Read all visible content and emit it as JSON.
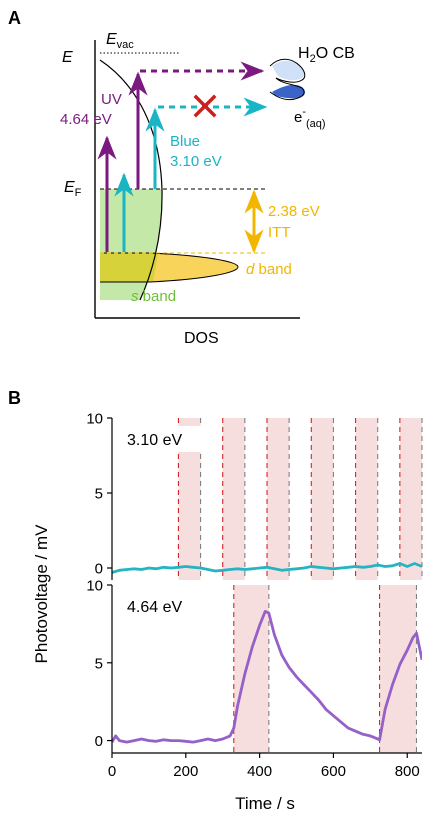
{
  "colors": {
    "purple": "#7a1a7e",
    "cyan": "#1ab5c4",
    "gold": "#f2b600",
    "red": "#cc1f1f",
    "s_band_fill": "#c4e8a8",
    "d_band_fill": "#f9d45a",
    "overlap_fill": "#d6d23a",
    "shade": "#f6dede",
    "uv_trace": "#9560c8",
    "blue_trace": "#25b4c2",
    "cb_blue": "#3a64c8"
  },
  "panel_a": {
    "panel_label": "A",
    "e_axis_label": "E",
    "e_vac": "E",
    "e_vac_sub": "vac",
    "e_f": "E",
    "e_f_sub": "F",
    "dos_label": "DOS",
    "uv_label": "UV",
    "uv_energy": "4.64 eV",
    "blue_label": "Blue",
    "blue_energy": "3.10 eV",
    "itt_energy": "2.38 eV",
    "itt_label": "ITT",
    "d_band_italic": "d",
    "d_band_word": " band",
    "s_band_italic": "s",
    "s_band_word": " band",
    "h2o_pre": "H",
    "h2o_sub": "2",
    "h2o_post": "O CB",
    "electron": "e",
    "electron_sup": "-",
    "electron_sub": "(aq)"
  },
  "panel_b": {
    "panel_label": "B",
    "ylabel": "Photovoltage / mV",
    "xlabel": "Time / s",
    "top_label": "3.10 eV",
    "bottom_label": "4.64 eV"
  },
  "chart_data": [
    {
      "type": "line",
      "title": "3.10 eV",
      "xlabel": "Time / s",
      "ylabel": "Photovoltage / mV",
      "xlim": [
        0,
        840
      ],
      "ylim": [
        -0.8,
        10
      ],
      "x_ticks": [
        0,
        200,
        400,
        600,
        800
      ],
      "y_ticks": [
        0,
        5,
        10
      ],
      "illumination_on": [
        180,
        300,
        420,
        540,
        660,
        780
      ],
      "illumination_off": [
        240,
        360,
        480,
        600,
        720,
        840
      ],
      "series": [
        {
          "x": [
            0,
            20,
            40,
            60,
            80,
            100,
            120,
            140,
            160,
            180,
            200,
            220,
            240,
            260,
            280,
            300,
            320,
            340,
            360,
            380,
            400,
            420,
            440,
            460,
            480,
            500,
            520,
            540,
            560,
            580,
            600,
            620,
            640,
            660,
            680,
            700,
            720,
            740,
            760,
            780,
            800,
            820,
            840
          ],
          "values": [
            -0.3,
            -0.15,
            -0.1,
            -0.05,
            -0.1,
            0.0,
            -0.05,
            0.05,
            0.0,
            0.05,
            0.1,
            0.05,
            0.0,
            -0.1,
            -0.2,
            -0.15,
            -0.1,
            -0.05,
            -0.1,
            -0.05,
            0.0,
            0.05,
            -0.05,
            -0.15,
            -0.1,
            -0.05,
            0.0,
            0.1,
            0.05,
            0.0,
            -0.05,
            0.0,
            0.05,
            0.1,
            0.05,
            0.1,
            0.2,
            0.1,
            0.15,
            0.3,
            0.1,
            0.3,
            0.1
          ]
        }
      ]
    },
    {
      "type": "line",
      "title": "4.64 eV",
      "xlabel": "Time / s",
      "ylabel": "Photovoltage / mV",
      "xlim": [
        0,
        840
      ],
      "ylim": [
        -0.8,
        10
      ],
      "x_ticks": [
        0,
        200,
        400,
        600,
        800
      ],
      "x_tick_labels": [
        "0",
        "200",
        "400",
        "600",
        "800"
      ],
      "y_ticks": [
        0,
        5,
        10
      ],
      "illumination_on": [
        330,
        725
      ],
      "illumination_off": [
        425,
        825
      ],
      "series": [
        {
          "x": [
            0,
            10,
            20,
            40,
            60,
            80,
            100,
            120,
            140,
            160,
            180,
            200,
            220,
            240,
            260,
            280,
            300,
            320,
            330,
            340,
            360,
            380,
            400,
            415,
            425,
            440,
            460,
            480,
            500,
            520,
            540,
            560,
            580,
            600,
            620,
            640,
            660,
            680,
            700,
            715,
            725,
            740,
            760,
            780,
            800,
            815,
            825,
            840
          ],
          "values": [
            -0.1,
            0.3,
            0.0,
            -0.1,
            0.0,
            0.1,
            0.0,
            -0.05,
            0.05,
            0.0,
            0.0,
            -0.05,
            -0.1,
            0.0,
            0.1,
            0.0,
            0.1,
            0.3,
            0.8,
            2.2,
            4.3,
            6.0,
            7.4,
            8.3,
            8.2,
            6.8,
            5.5,
            4.7,
            4.1,
            3.6,
            3.1,
            2.6,
            2.0,
            1.6,
            1.2,
            0.8,
            0.6,
            0.4,
            0.3,
            0.15,
            0.05,
            2.0,
            3.6,
            4.9,
            5.8,
            6.6,
            6.9,
            5.2
          ]
        }
      ]
    }
  ]
}
